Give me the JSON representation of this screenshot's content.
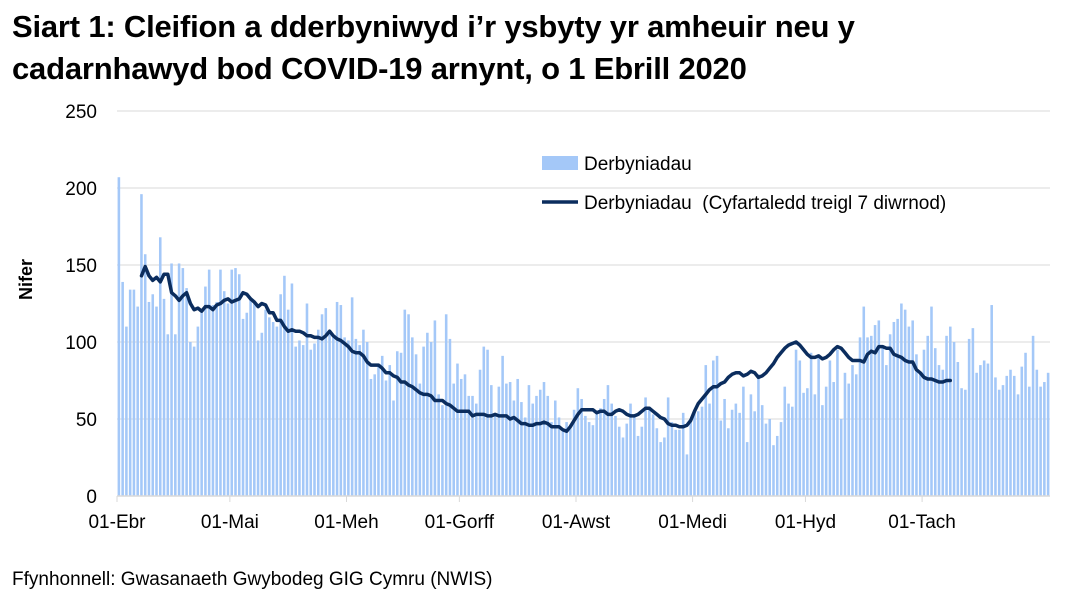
{
  "title": "Siart 1: Cleifion a dderbyniwyd i’r ysbyty yr amheuir neu y cadarnhawyd bod COVID-19 arnynt, o 1 Ebrill 2020",
  "source": "Ffynhonnell: Gwasanaeth Gwybodeg GIG Cymru (NWIS)",
  "colors": {
    "bars": "#a4c8f8",
    "line": "#0b2d5e",
    "grid": "#d9d9d9",
    "axis": "#d9d9d9"
  },
  "chart_data": {
    "type": "bar",
    "title": "Siart 1: Cleifion a dderbyniwyd i’r ysbyty yr amheuir neu y cadarnhawyd bod COVID-19 arnynt, o 1 Ebrill 2020",
    "xlabel": "",
    "ylabel": "Nifer",
    "ylim": [
      0,
      250
    ],
    "yticks": [
      0,
      50,
      100,
      150,
      200,
      250
    ],
    "grid": true,
    "legend_position": "upper right",
    "x_tick_labels": [
      "01-Ebr",
      "01-Mai",
      "01-Meh",
      "01-Gorff",
      "01-Awst",
      "01-Medi",
      "01-Hyd",
      "01-Tach"
    ],
    "x_tick_day_index": [
      0,
      30,
      61,
      91,
      122,
      153,
      183,
      214
    ],
    "start_date": "01-Ebr",
    "series": [
      {
        "name": "Derbyniadau",
        "type": "bar",
        "values": [
          207,
          139,
          110,
          134,
          134,
          123,
          196,
          157,
          126,
          131,
          123,
          168,
          128,
          105,
          151,
          105,
          151,
          148,
          135,
          100,
          97,
          110,
          121,
          136,
          147,
          124,
          126,
          147,
          133,
          125,
          147,
          148,
          144,
          115,
          119,
          129,
          126,
          101,
          106,
          121,
          116,
          113,
          110,
          131,
          143,
          121,
          138,
          97,
          101,
          98,
          125,
          95,
          99,
          108,
          118,
          122,
          105,
          103,
          126,
          124,
          103,
          101,
          129,
          102,
          98,
          108,
          100,
          76,
          79,
          85,
          91,
          75,
          85,
          62,
          94,
          93,
          121,
          118,
          103,
          92,
          73,
          97,
          106,
          100,
          114,
          66,
          59,
          118,
          102,
          73,
          86,
          76,
          79,
          65,
          65,
          60,
          82,
          97,
          95,
          72,
          53,
          71,
          91,
          73,
          74,
          62,
          76,
          61,
          51,
          72,
          60,
          65,
          69,
          74,
          65,
          48,
          62,
          51,
          42,
          48,
          45,
          56,
          70,
          63,
          52,
          48,
          46,
          53,
          57,
          63,
          72,
          60,
          52,
          45,
          38,
          47,
          60,
          51,
          39,
          45,
          64,
          58,
          53,
          44,
          35,
          38,
          64,
          48,
          43,
          43,
          54,
          27,
          48,
          54,
          55,
          58,
          85,
          60,
          88,
          91,
          49,
          63,
          44,
          56,
          60,
          54,
          71,
          35,
          66,
          55,
          79,
          59,
          47,
          50,
          33,
          39,
          48,
          71,
          60,
          58,
          95,
          88,
          67,
          70,
          93,
          66,
          92,
          59,
          71,
          88,
          74,
          95,
          50,
          80,
          73,
          85,
          79,
          103,
          123,
          103,
          104,
          111,
          114,
          96,
          85,
          105,
          113,
          115,
          125,
          121,
          110,
          114,
          92,
          80,
          95,
          104,
          123,
          96,
          85,
          82,
          104,
          110,
          100,
          87,
          70,
          69,
          102,
          109,
          80,
          85,
          88,
          86,
          124,
          77,
          69,
          72,
          78,
          82,
          78,
          66,
          84,
          93,
          71,
          104,
          82,
          71,
          74,
          80
        ]
      },
      {
        "name": "Derbyniadau  (Cyfartaledd treigl 7 diwrnod)",
        "type": "line",
        "start_index": 6,
        "values": [
          143,
          149,
          143,
          140,
          142,
          139,
          144,
          144,
          132,
          130,
          127,
          130,
          132,
          125,
          121,
          122,
          120,
          123,
          123,
          121,
          124,
          125,
          127,
          128,
          126,
          127,
          128,
          132,
          131,
          128,
          126,
          123,
          125,
          124,
          119,
          119,
          114,
          114,
          110,
          107,
          108,
          107,
          107,
          106,
          104,
          104,
          103,
          103,
          102,
          104,
          107,
          104,
          102,
          101,
          99,
          97,
          94,
          93,
          93,
          91,
          87,
          85,
          85,
          85,
          83,
          80,
          80,
          78,
          77,
          74,
          74,
          72,
          71,
          69,
          67,
          66,
          66,
          65,
          62,
          62,
          62,
          60,
          59,
          57,
          55,
          55,
          55,
          55,
          52,
          53,
          53,
          53,
          52,
          52,
          53,
          52,
          52,
          52,
          50,
          51,
          49,
          47,
          47,
          46,
          46,
          47,
          47,
          48,
          47,
          45,
          45,
          45,
          43,
          42,
          45,
          49,
          53,
          56,
          56,
          56,
          56,
          54,
          55,
          55,
          53,
          53,
          55,
          56,
          55,
          53,
          52,
          52,
          53,
          55,
          57,
          57,
          55,
          53,
          51,
          50,
          47,
          46,
          46,
          45,
          45,
          46,
          49,
          55,
          60,
          63,
          66,
          69,
          71,
          71,
          73,
          74,
          77,
          79,
          80,
          80,
          78,
          79,
          81,
          80,
          77,
          78,
          80,
          83,
          86,
          90,
          93,
          96,
          98,
          99,
          100,
          98,
          95,
          92,
          90,
          90,
          91,
          89,
          90,
          92,
          95,
          97,
          96,
          93,
          90,
          88,
          88,
          88,
          87,
          92,
          94,
          93,
          97,
          97,
          96,
          96,
          92,
          91,
          90,
          88,
          87,
          87,
          82,
          80,
          77,
          76,
          76,
          75,
          74,
          74,
          75,
          75
        ]
      }
    ]
  }
}
